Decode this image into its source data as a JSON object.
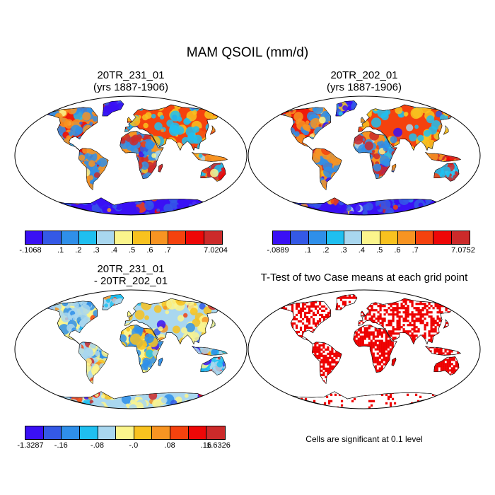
{
  "figure": {
    "title": "MAM QSOIL (mm/d)"
  },
  "panels": [
    {
      "title_line1": "20TR_231_01",
      "title_line2": "(yrs 1887-1906)",
      "colorbar": {
        "colors": [
          "#3a10f5",
          "#3459e6",
          "#2f8fe9",
          "#1fbff0",
          "#a9d7ef",
          "#fbf58c",
          "#f8c21f",
          "#f79422",
          "#f5420e",
          "#ee0707",
          "#cc2a2a"
        ],
        "labels": [
          "-.1068",
          ".1",
          ".2",
          ".3",
          ".4",
          ".5",
          ".6",
          ".7",
          "7.0204"
        ]
      }
    },
    {
      "title_line1": "20TR_202_01",
      "title_line2": "(yrs 1887-1906)",
      "colorbar": {
        "colors": [
          "#3a10f5",
          "#3459e6",
          "#2f8fe9",
          "#1fbff0",
          "#a9d7ef",
          "#fbf58c",
          "#f8c21f",
          "#f79422",
          "#f5420e",
          "#ee0707",
          "#cc2a2a"
        ],
        "labels": [
          "-.0889",
          ".1",
          ".2",
          ".3",
          ".4",
          ".5",
          ".6",
          ".7",
          "7.0752"
        ]
      }
    },
    {
      "title_line1": "20TR_231_01",
      "title_line2": "- 20TR_202_01",
      "colorbar": {
        "colors": [
          "#3a10f5",
          "#3459e6",
          "#2f8fe9",
          "#1fbff0",
          "#a9d7ef",
          "#fbf58c",
          "#f8c21f",
          "#f79422",
          "#f5420e",
          "#ee0707",
          "#cc2a2a"
        ],
        "labels": [
          "-1.3287",
          "-.16",
          "-.08",
          "-.0",
          ".08",
          ".16",
          "1.6326"
        ]
      }
    },
    {
      "title_line1": "T-Test of two Case means at each grid point",
      "note": "Cells are significant at 0.1 level",
      "significance_color": "#ee0000"
    }
  ]
}
